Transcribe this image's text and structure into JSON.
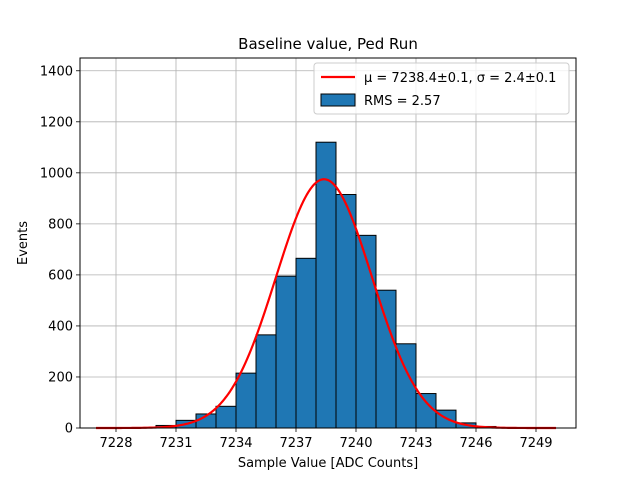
{
  "chart_data": {
    "type": "bar",
    "title": "Baseline value, Ped Run",
    "xlabel": "Sample Value [ADC Counts]",
    "ylabel": "Events",
    "xlim": [
      7226.2,
      7251.0
    ],
    "ylim": [
      0,
      1450
    ],
    "grid": true,
    "legend_position": "top-right",
    "x_ticks": [
      7228,
      7231,
      7234,
      7237,
      7240,
      7243,
      7246,
      7249
    ],
    "y_ticks": [
      0,
      200,
      400,
      600,
      800,
      1000,
      1200,
      1400
    ],
    "histogram": {
      "name": "RMS = 2.57",
      "color": "#1f77b4",
      "edgecolor": "#000000",
      "bins": [
        {
          "left": 7230.0,
          "right": 7231.0,
          "count": 10
        },
        {
          "left": 7231.0,
          "right": 7232.0,
          "count": 30
        },
        {
          "left": 7232.0,
          "right": 7233.0,
          "count": 55
        },
        {
          "left": 7233.0,
          "right": 7234.0,
          "count": 85
        },
        {
          "left": 7234.0,
          "right": 7235.0,
          "count": 215
        },
        {
          "left": 7235.0,
          "right": 7236.0,
          "count": 365
        },
        {
          "left": 7236.0,
          "right": 7237.0,
          "count": 595
        },
        {
          "left": 7237.0,
          "right": 7238.0,
          "count": 665
        },
        {
          "left": 7238.0,
          "right": 7239.0,
          "count": 1120
        },
        {
          "left": 7239.0,
          "right": 7240.0,
          "count": 915
        },
        {
          "left": 7240.0,
          "right": 7241.0,
          "count": 755
        },
        {
          "left": 7241.0,
          "right": 7242.0,
          "count": 540
        },
        {
          "left": 7242.0,
          "right": 7243.0,
          "count": 330
        },
        {
          "left": 7243.0,
          "right": 7244.0,
          "count": 135
        },
        {
          "left": 7244.0,
          "right": 7245.0,
          "count": 70
        },
        {
          "left": 7245.0,
          "right": 7246.0,
          "count": 20
        },
        {
          "left": 7246.0,
          "right": 7247.0,
          "count": 6
        }
      ]
    },
    "fit": {
      "name": "μ = 7238.4±0.1, σ = 2.4±0.1",
      "color": "#ff0000",
      "mu": 7238.4,
      "sigma": 2.4,
      "amplitude": 975,
      "x_range": [
        7227.0,
        7250.0
      ]
    },
    "legend": [
      {
        "label": "μ = 7238.4±0.1, σ = 2.4±0.1",
        "kind": "line",
        "color": "#ff0000"
      },
      {
        "label": "RMS = 2.57",
        "kind": "patch",
        "color": "#1f77b4"
      }
    ]
  }
}
